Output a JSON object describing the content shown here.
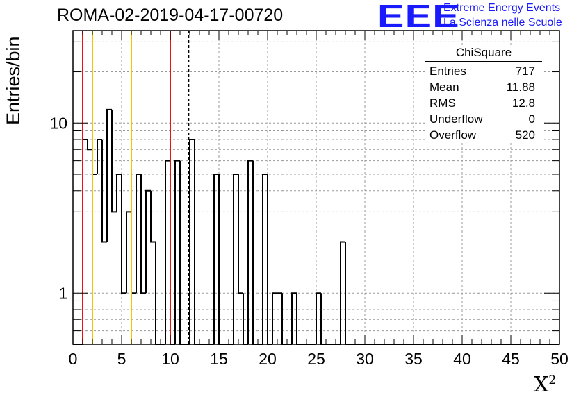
{
  "header": {
    "title": "ROMA-02-2019-04-17-00720",
    "logo_text": "EEE",
    "brand_line1": "Extreme Energy Events",
    "brand_line2": "La Scienza nelle Scuole"
  },
  "stats_box": {
    "title": "ChiSquare",
    "rows": [
      {
        "label": "Entries",
        "value": "717"
      },
      {
        "label": "Mean",
        "value": "11.88"
      },
      {
        "label": "RMS",
        "value": "12.8"
      },
      {
        "label": "Underflow",
        "value": "0"
      },
      {
        "label": "Overflow",
        "value": "520"
      }
    ]
  },
  "chart_data": {
    "type": "histogram",
    "title": "ROMA-02-2019-04-17-00720",
    "xlabel": "X",
    "xlabel_superscript": "2",
    "ylabel": "Entries/bin",
    "xlim": [
      0,
      50
    ],
    "ylim": [
      0.5,
      35
    ],
    "log_y": true,
    "grid": true,
    "bin_width": 0.5,
    "x_ticks": [
      "0",
      "5",
      "10",
      "15",
      "20",
      "25",
      "30",
      "35",
      "40",
      "45",
      "50"
    ],
    "y_ticks": [
      "1",
      "10"
    ],
    "counts": [
      0,
      0,
      8,
      7,
      5,
      8,
      2,
      12,
      3,
      5,
      1,
      3,
      1,
      5,
      1,
      4,
      2,
      0,
      0,
      6,
      0,
      6,
      0,
      0,
      8,
      0,
      0,
      0,
      0,
      5,
      0,
      0,
      0,
      5,
      1,
      0,
      6,
      0,
      0,
      5,
      0,
      1,
      1,
      0,
      0,
      1,
      0,
      0,
      0,
      0,
      1,
      0,
      0,
      0,
      0,
      2,
      0,
      0,
      0,
      0,
      0,
      0,
      0,
      0,
      0,
      0,
      0,
      0,
      0,
      0,
      0,
      0,
      0,
      0,
      0,
      0,
      0,
      0,
      0,
      0,
      0,
      0,
      0,
      0,
      0,
      0,
      0,
      0,
      0,
      0,
      0,
      0,
      0,
      0,
      0,
      0,
      0,
      0,
      0,
      0
    ],
    "vertical_lines": [
      {
        "x": 1,
        "color": "#ee1111",
        "style": "solid"
      },
      {
        "x": 2,
        "color": "#f5c400",
        "style": "solid"
      },
      {
        "x": 6,
        "color": "#f5c400",
        "style": "solid"
      },
      {
        "x": 10,
        "color": "#ee1111",
        "style": "solid"
      },
      {
        "x": 11.88,
        "color": "#000000",
        "style": "dashed"
      }
    ],
    "colors": {
      "histogram": "#000000",
      "grid": "#999999"
    }
  }
}
